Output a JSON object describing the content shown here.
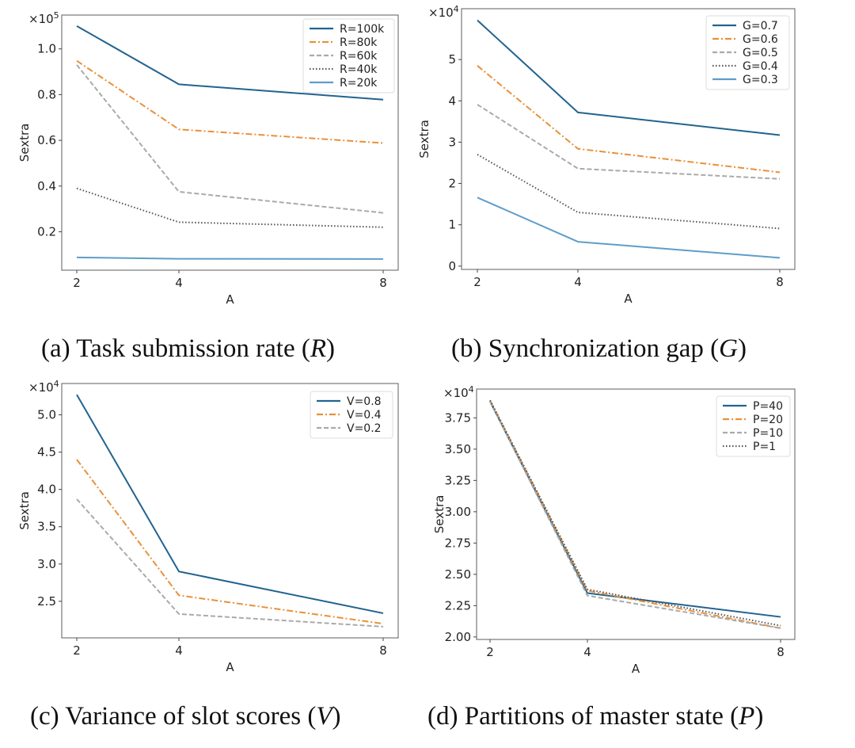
{
  "chart_data": [
    {
      "id": "a",
      "type": "line",
      "caption": {
        "prefix": "(a) Task submission rate (",
        "var": "R",
        "suffix": ")"
      },
      "xlabel": "A",
      "ylabel": "Sextra",
      "multiplier": "×10",
      "multiplier_exp": "5",
      "x": [
        2,
        4,
        8
      ],
      "xticks": [
        "2",
        "4",
        "8"
      ],
      "xlim": [
        1.7,
        8.5
      ],
      "ylim": [
        0.032,
        1.148
      ],
      "yticks": [
        0.2,
        0.4,
        0.6,
        0.8,
        1.0
      ],
      "ytick_labels": [
        "0.2",
        "0.4",
        "0.6",
        "0.8",
        "1.0"
      ],
      "grid": false,
      "legend_position": "top-right",
      "series": [
        {
          "name": "R=100k",
          "style": "solid",
          "color": "#22638f",
          "values": [
            1.1,
            0.845,
            0.778
          ]
        },
        {
          "name": "R=80k",
          "style": "dashdot",
          "color": "#e8913a",
          "values": [
            0.948,
            0.648,
            0.588
          ]
        },
        {
          "name": "R=60k",
          "style": "dashed",
          "color": "#aaaaaa",
          "values": [
            0.93,
            0.375,
            0.283
          ]
        },
        {
          "name": "R=40k",
          "style": "dotted",
          "color": "#555555",
          "values": [
            0.39,
            0.242,
            0.22
          ]
        },
        {
          "name": "R=20k",
          "style": "solid",
          "color": "#5f9dc9",
          "values": [
            0.088,
            0.082,
            0.081
          ]
        }
      ]
    },
    {
      "id": "b",
      "type": "line",
      "caption": {
        "prefix": "(b) Synchronization gap (",
        "var": "G",
        "suffix": ")"
      },
      "xlabel": "A",
      "ylabel": "Sextra",
      "multiplier": "×10",
      "multiplier_exp": "4",
      "x": [
        2,
        4,
        8
      ],
      "xticks": [
        "2",
        "4",
        "8"
      ],
      "xlim": [
        1.7,
        8.5
      ],
      "ylim": [
        -0.08,
        6.23
      ],
      "yticks": [
        0,
        1,
        2,
        3,
        4,
        5
      ],
      "ytick_labels": [
        "0",
        "1",
        "2",
        "3",
        "4",
        "5"
      ],
      "grid": false,
      "legend_position": "top-right",
      "series": [
        {
          "name": "G=0.7",
          "style": "solid",
          "color": "#22638f",
          "values": [
            5.95,
            3.72,
            3.17
          ]
        },
        {
          "name": "G=0.6",
          "style": "dashdot",
          "color": "#e8913a",
          "values": [
            4.85,
            2.84,
            2.27
          ]
        },
        {
          "name": "G=0.5",
          "style": "dashed",
          "color": "#aaaaaa",
          "values": [
            3.91,
            2.36,
            2.11
          ]
        },
        {
          "name": "G=0.4",
          "style": "dotted",
          "color": "#555555",
          "values": [
            2.7,
            1.3,
            0.91
          ]
        },
        {
          "name": "G=0.3",
          "style": "solid",
          "color": "#5f9dc9",
          "values": [
            1.66,
            0.59,
            0.2
          ]
        }
      ]
    },
    {
      "id": "c",
      "type": "line",
      "caption": {
        "prefix": "(c) Variance of slot scores (",
        "var": "V",
        "suffix": ")"
      },
      "xlabel": "A",
      "ylabel": "Sextra",
      "multiplier": "×10",
      "multiplier_exp": "4",
      "x": [
        2,
        4,
        8
      ],
      "xticks": [
        "2",
        "4",
        "8"
      ],
      "xlim": [
        1.7,
        8.5
      ],
      "ylim": [
        2.01,
        5.42
      ],
      "yticks": [
        2.5,
        3.0,
        3.5,
        4.0,
        4.5,
        5.0
      ],
      "ytick_labels": [
        "2.5",
        "3.0",
        "3.5",
        "4.0",
        "4.5",
        "5.0"
      ],
      "grid": false,
      "legend_position": "top-right",
      "series": [
        {
          "name": "V=0.8",
          "style": "solid",
          "color": "#22638f",
          "values": [
            5.27,
            2.9,
            2.34
          ]
        },
        {
          "name": "V=0.4",
          "style": "dashdot",
          "color": "#e8913a",
          "values": [
            4.4,
            2.58,
            2.2
          ]
        },
        {
          "name": "V=0.2",
          "style": "dashed",
          "color": "#aaaaaa",
          "values": [
            3.87,
            2.33,
            2.16
          ]
        }
      ]
    },
    {
      "id": "d",
      "type": "line",
      "caption": {
        "prefix": "(d) Partitions of master state (",
        "var": "P",
        "suffix": ")"
      },
      "xlabel": "A",
      "ylabel": "Sextra",
      "multiplier": "×10",
      "multiplier_exp": "4",
      "x": [
        2,
        4,
        8
      ],
      "xticks": [
        "2",
        "4",
        "8"
      ],
      "xlim": [
        1.7,
        8.3
      ],
      "ylim": [
        1.98,
        3.98
      ],
      "yticks": [
        2.0,
        2.25,
        2.5,
        2.75,
        3.0,
        3.25,
        3.5,
        3.75
      ],
      "ytick_labels": [
        "2.00",
        "2.25",
        "2.50",
        "2.75",
        "3.00",
        "3.25",
        "3.50",
        "3.75"
      ],
      "grid": false,
      "legend_position": "top-right",
      "series": [
        {
          "name": "P=40",
          "style": "solid",
          "color": "#22638f",
          "values": [
            3.88,
            2.35,
            2.16
          ]
        },
        {
          "name": "P=20",
          "style": "dashdot",
          "color": "#e8913a",
          "values": [
            3.89,
            2.37,
            2.07
          ]
        },
        {
          "name": "P=10",
          "style": "dashed",
          "color": "#aaaaaa",
          "values": [
            3.88,
            2.33,
            2.07
          ]
        },
        {
          "name": "P=1",
          "style": "dotted",
          "color": "#555555",
          "values": [
            3.89,
            2.38,
            2.09
          ]
        }
      ]
    }
  ]
}
